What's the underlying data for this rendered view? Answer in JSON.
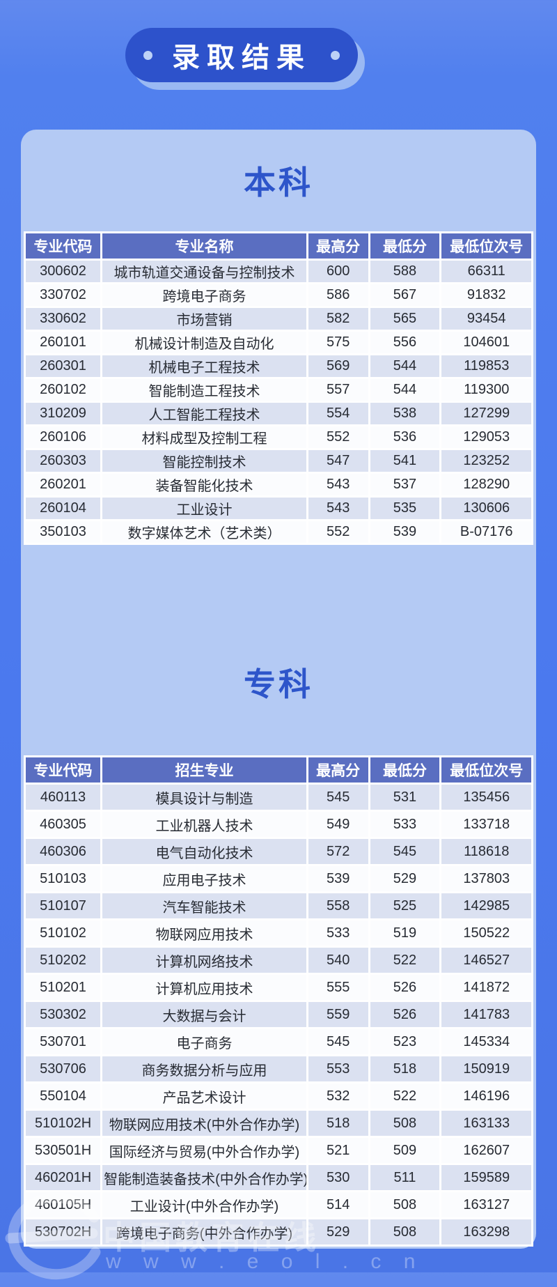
{
  "badge": {
    "label": "录取结果"
  },
  "colors": {
    "page_background": "#4b79ee",
    "badge_background": "#2d52cb",
    "card_background": "#b4caf4",
    "section_title": "#2d55ca",
    "table_header_background": "#5a6ec1",
    "row_stripe": "#dbe1f1",
    "row_plain": "#fbfcfe",
    "cell_text": "#272b33"
  },
  "watermark": {
    "brand": "中国教育在线",
    "url": "w w w . e o l . c n"
  },
  "chart_data": [
    {
      "type": "table",
      "title": "本科",
      "columns": [
        "专业代码",
        "专业名称",
        "最高分",
        "最低分",
        "最低位次号"
      ],
      "rows": [
        [
          "300602",
          "城市轨道交通设备与控制技术",
          "600",
          "588",
          "66311"
        ],
        [
          "330702",
          "跨境电子商务",
          "586",
          "567",
          "91832"
        ],
        [
          "330602",
          "市场营销",
          "582",
          "565",
          "93454"
        ],
        [
          "260101",
          "机械设计制造及自动化",
          "575",
          "556",
          "104601"
        ],
        [
          "260301",
          "机械电子工程技术",
          "569",
          "544",
          "119853"
        ],
        [
          "260102",
          "智能制造工程技术",
          "557",
          "544",
          "119300"
        ],
        [
          "310209",
          "人工智能工程技术",
          "554",
          "538",
          "127299"
        ],
        [
          "260106",
          "材料成型及控制工程",
          "552",
          "536",
          "129053"
        ],
        [
          "260303",
          "智能控制技术",
          "547",
          "541",
          "123252"
        ],
        [
          "260201",
          "装备智能化技术",
          "543",
          "537",
          "128290"
        ],
        [
          "260104",
          "工业设计",
          "543",
          "535",
          "130606"
        ],
        [
          "350103",
          "数字媒体艺术（艺术类）",
          "552",
          "539",
          "B-07176"
        ]
      ]
    },
    {
      "type": "table",
      "title": "专科",
      "columns": [
        "专业代码",
        "招生专业",
        "最高分",
        "最低分",
        "最低位次号"
      ],
      "rows": [
        [
          "460113",
          "模具设计与制造",
          "545",
          "531",
          "135456"
        ],
        [
          "460305",
          "工业机器人技术",
          "549",
          "533",
          "133718"
        ],
        [
          "460306",
          "电气自动化技术",
          "572",
          "545",
          "118618"
        ],
        [
          "510103",
          "应用电子技术",
          "539",
          "529",
          "137803"
        ],
        [
          "510107",
          "汽车智能技术",
          "558",
          "525",
          "142985"
        ],
        [
          "510102",
          "物联网应用技术",
          "533",
          "519",
          "150522"
        ],
        [
          "510202",
          "计算机网络技术",
          "540",
          "522",
          "146527"
        ],
        [
          "510201",
          "计算机应用技术",
          "555",
          "526",
          "141872"
        ],
        [
          "530302",
          "大数据与会计",
          "559",
          "526",
          "141783"
        ],
        [
          "530701",
          "电子商务",
          "545",
          "523",
          "145334"
        ],
        [
          "530706",
          "商务数据分析与应用",
          "553",
          "518",
          "150919"
        ],
        [
          "550104",
          "产品艺术设计",
          "532",
          "522",
          "146196"
        ],
        [
          "510102H",
          "物联网应用技术(中外合作办学)",
          "518",
          "508",
          "163133"
        ],
        [
          "530501H",
          "国际经济与贸易(中外合作办学)",
          "521",
          "509",
          "162607"
        ],
        [
          "460201H",
          "智能制造装备技术(中外合作办学)",
          "530",
          "511",
          "159589"
        ],
        [
          "460105H",
          "工业设计(中外合作办学)",
          "514",
          "508",
          "163127"
        ],
        [
          "530702H",
          "跨境电子商务(中外合作办学)",
          "529",
          "508",
          "163298"
        ]
      ]
    }
  ]
}
